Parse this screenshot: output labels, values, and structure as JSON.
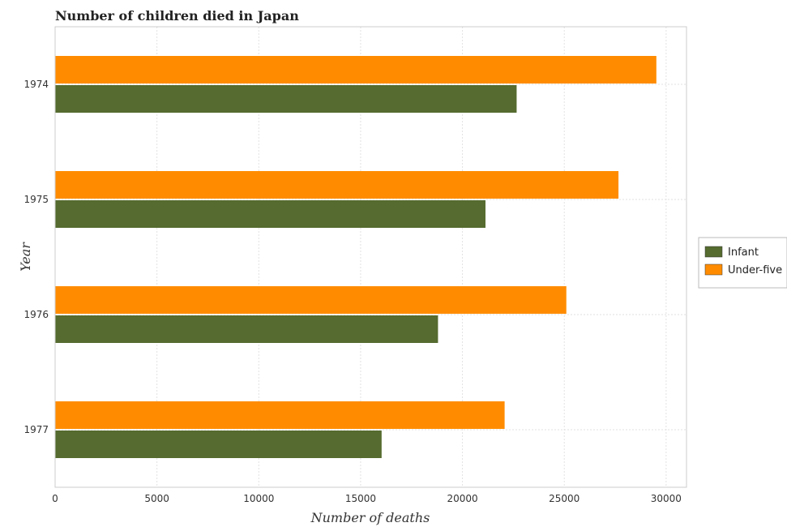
{
  "chart_data": {
    "type": "bar",
    "orientation": "horizontal",
    "title": "Number of children died in Japan",
    "xlabel": "Number of deaths",
    "ylabel": "Year",
    "categories": [
      "1974",
      "1975",
      "1976",
      "1977"
    ],
    "series": [
      {
        "name": "Infant",
        "color": "#556b2f",
        "values": [
          22660,
          21130,
          18800,
          16030
        ]
      },
      {
        "name": "Under-five",
        "color": "#ff8c00",
        "values": [
          29520,
          27660,
          25100,
          22070
        ]
      }
    ],
    "xlim": [
      0,
      31000
    ],
    "xticks": [
      0,
      5000,
      10000,
      15000,
      20000,
      25000,
      30000
    ],
    "xtick_labels": [
      "0",
      "5000",
      "10000",
      "15000",
      "20000",
      "25000",
      "30000"
    ],
    "grid": true,
    "legend_position": "right"
  }
}
